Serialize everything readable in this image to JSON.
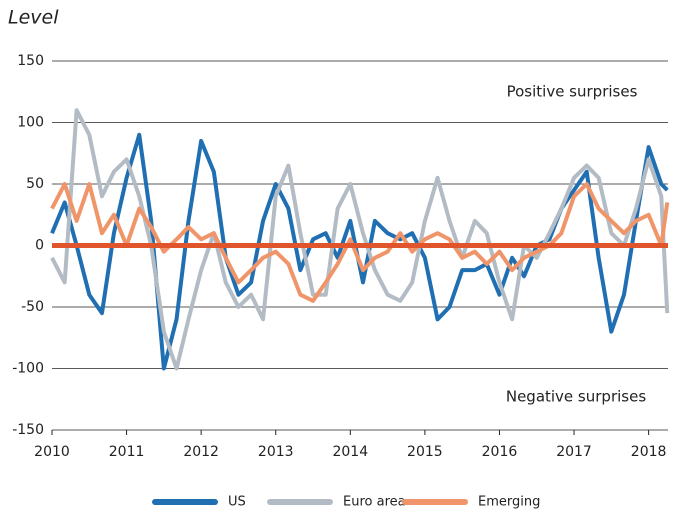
{
  "chart_data": {
    "type": "line",
    "title": "Level",
    "x": [
      2010,
      2010.17,
      2010.33,
      2010.5,
      2010.67,
      2010.83,
      2011,
      2011.17,
      2011.33,
      2011.5,
      2011.67,
      2011.83,
      2012,
      2012.17,
      2012.33,
      2012.5,
      2012.67,
      2012.83,
      2013,
      2013.17,
      2013.33,
      2013.5,
      2013.67,
      2013.83,
      2014,
      2014.17,
      2014.33,
      2014.5,
      2014.67,
      2014.83,
      2015,
      2015.17,
      2015.33,
      2015.5,
      2015.67,
      2015.83,
      2016,
      2016.17,
      2016.33,
      2016.5,
      2016.67,
      2016.83,
      2017,
      2017.17,
      2017.33,
      2017.5,
      2017.67,
      2017.83,
      2018,
      2018.17,
      2018.25
    ],
    "series": [
      {
        "name": "US",
        "color": "#1f6fb2",
        "values": [
          10,
          35,
          0,
          -40,
          -55,
          10,
          55,
          90,
          20,
          -100,
          -60,
          20,
          85,
          60,
          -10,
          -40,
          -30,
          20,
          50,
          30,
          -20,
          5,
          10,
          -10,
          20,
          -30,
          20,
          10,
          5,
          10,
          -10,
          -60,
          -50,
          -20,
          -20,
          -15,
          -40,
          -10,
          -25,
          0,
          5,
          30,
          45,
          60,
          -10,
          -70,
          -40,
          20,
          80,
          50,
          45
        ]
      },
      {
        "name": "Euro area",
        "color": "#b3bcc4",
        "values": [
          -10,
          -30,
          110,
          90,
          40,
          60,
          70,
          40,
          0,
          -70,
          -100,
          -60,
          -20,
          10,
          -30,
          -50,
          -40,
          -60,
          40,
          65,
          10,
          -40,
          -40,
          30,
          50,
          10,
          -20,
          -40,
          -45,
          -30,
          20,
          55,
          20,
          -10,
          20,
          10,
          -30,
          -60,
          0,
          -10,
          10,
          30,
          55,
          65,
          55,
          10,
          0,
          30,
          70,
          40,
          -55
        ]
      },
      {
        "name": "Emerging",
        "color": "#f0956a",
        "values": [
          30,
          50,
          20,
          50,
          10,
          25,
          0,
          30,
          15,
          -5,
          5,
          15,
          5,
          10,
          -10,
          -30,
          -20,
          -10,
          -5,
          -15,
          -40,
          -45,
          -30,
          -15,
          5,
          -20,
          -10,
          -5,
          10,
          -5,
          5,
          10,
          5,
          -10,
          -5,
          -15,
          -5,
          -20,
          -10,
          -5,
          0,
          10,
          40,
          50,
          30,
          20,
          10,
          20,
          25,
          0,
          35
        ]
      }
    ],
    "zero_line": {
      "value": 0,
      "color": "#e0552b"
    },
    "annotations": [
      "Positive surprises",
      "Negative surprises"
    ],
    "xlim": [
      2010,
      2018.26
    ],
    "xticks": [
      2010,
      2011,
      2012,
      2013,
      2014,
      2015,
      2016,
      2017,
      2018
    ],
    "ylim": [
      -150,
      150
    ],
    "yticks": [
      -150,
      -100,
      -50,
      0,
      50,
      100,
      150
    ],
    "grid": true,
    "legend": "bottom"
  }
}
